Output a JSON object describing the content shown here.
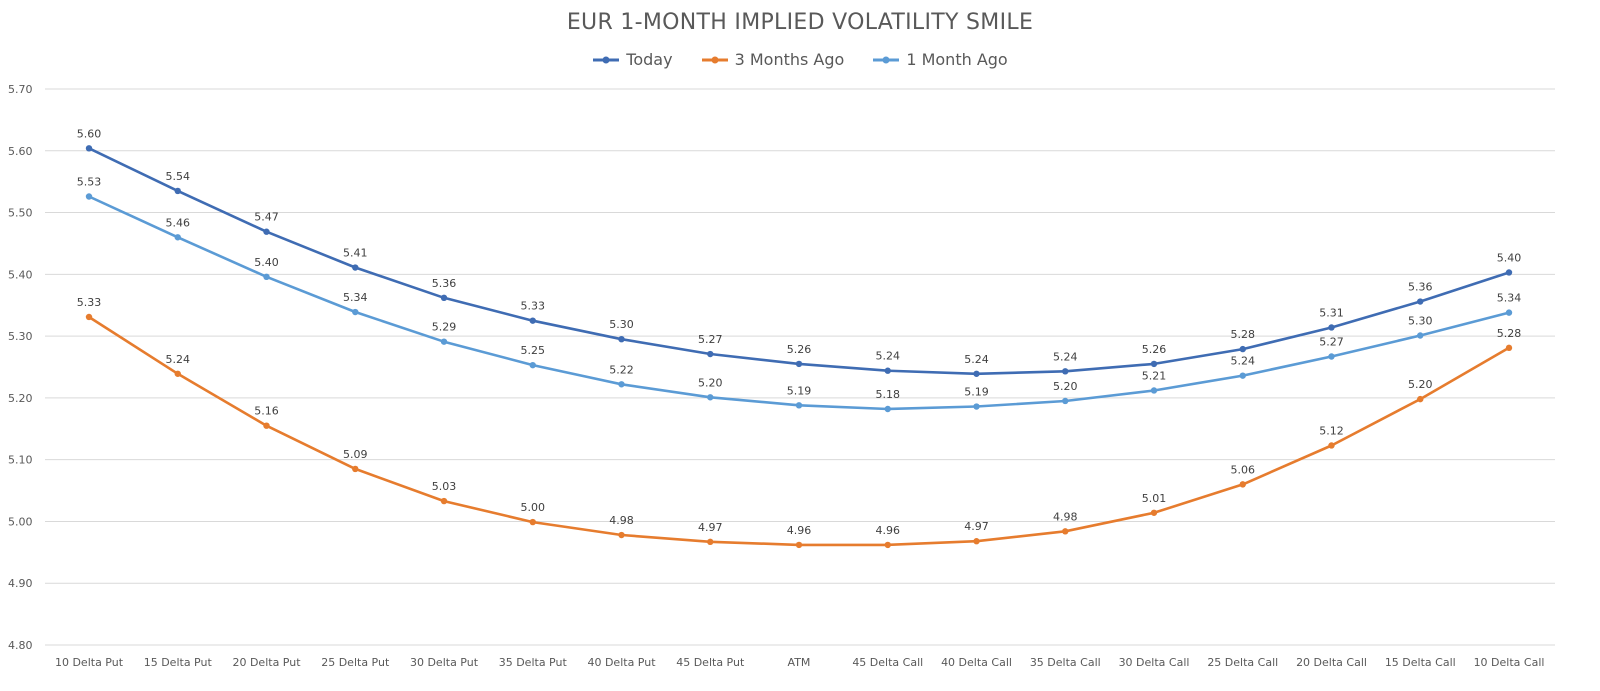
{
  "chart_data": {
    "type": "line",
    "title": "EUR 1-MONTH IMPLIED VOLATILITY SMILE",
    "xlabel": "",
    "ylabel": "",
    "ylim": [
      4.8,
      5.7
    ],
    "yticks": [
      "5.70",
      "5.60",
      "5.50",
      "5.40",
      "5.30",
      "5.20",
      "5.10",
      "5.00",
      "4.90",
      "4.80"
    ],
    "grid": true,
    "legend_position": "top-center",
    "categories": [
      "10 Delta Put",
      "15 Delta Put",
      "20 Delta Put",
      "25 Delta Put",
      "30 Delta Put",
      "35 Delta Put",
      "40 Delta Put",
      "45 Delta Put",
      "ATM",
      "45 Delta Call",
      "40 Delta Call",
      "35 Delta Call",
      "30 Delta Call",
      "25 Delta Call",
      "20 Delta Call",
      "15 Delta Call",
      "10 Delta Call"
    ],
    "series": [
      {
        "name": "Today",
        "color": "#3f6cb3",
        "values": [
          5.604,
          5.535,
          5.469,
          5.411,
          5.362,
          5.325,
          5.295,
          5.271,
          5.255,
          5.244,
          5.239,
          5.243,
          5.255,
          5.279,
          5.314,
          5.356,
          5.403
        ],
        "labels": [
          "5.60",
          "5.54",
          "5.47",
          "5.41",
          "5.36",
          "5.33",
          "5.30",
          "5.27",
          "5.26",
          "5.24",
          "5.24",
          "5.24",
          "5.26",
          "5.28",
          "5.31",
          "5.36",
          "5.40"
        ]
      },
      {
        "name": "3 Months Ago",
        "color": "#e67c2e",
        "values": [
          5.331,
          5.239,
          5.155,
          5.085,
          5.033,
          4.999,
          4.978,
          4.967,
          4.962,
          4.962,
          4.968,
          4.984,
          5.014,
          5.06,
          5.123,
          5.198,
          5.281
        ],
        "labels": [
          "5.33",
          "5.24",
          "5.16",
          "5.09",
          "5.03",
          "5.00",
          "4.98",
          "4.97",
          "4.96",
          "4.96",
          "4.97",
          "4.98",
          "5.01",
          "5.06",
          "5.12",
          "5.20",
          "5.28"
        ]
      },
      {
        "name": "1 Month Ago",
        "color": "#5b9bd5",
        "values": [
          5.526,
          5.46,
          5.396,
          5.339,
          5.291,
          5.253,
          5.222,
          5.201,
          5.188,
          5.182,
          5.186,
          5.195,
          5.212,
          5.236,
          5.267,
          5.301,
          5.338
        ],
        "labels": [
          "5.53",
          "5.46",
          "5.40",
          "5.34",
          "5.29",
          "5.25",
          "5.22",
          "5.20",
          "5.19",
          "5.18",
          "5.19",
          "5.20",
          "5.21",
          "5.24",
          "5.27",
          "5.30",
          "5.34"
        ]
      }
    ]
  }
}
